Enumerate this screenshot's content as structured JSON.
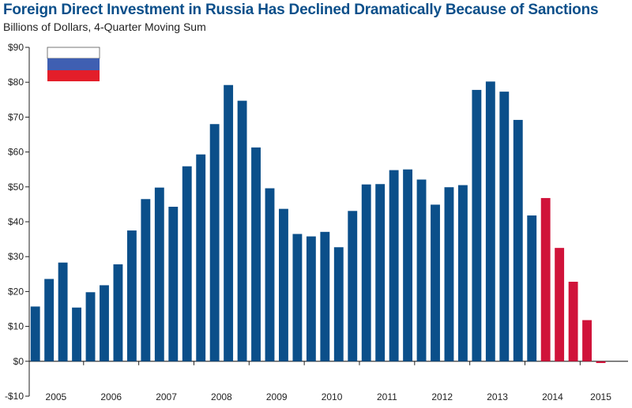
{
  "title": "Foreign Direct Investment in Russia Has Declined Dramatically Because of Sanctions",
  "subtitle": "Billions of Dollars, 4-Quarter Moving Sum",
  "colors": {
    "pre_sanction": "#0b4f8a",
    "post_sanction": "#d0133a",
    "flag_white": "#ffffff",
    "flag_blue": "#3f5fb2",
    "flag_red": "#e31e2a",
    "axis": "#222222",
    "title": "#0b4f8a"
  },
  "flag": {
    "icon": "russia-flag-icon",
    "stripes": [
      "white",
      "blue",
      "red"
    ]
  },
  "chart_data": {
    "type": "bar",
    "title": "Foreign Direct Investment in Russia Has Declined Dramatically Because of Sanctions",
    "ylabel": "Billions of Dollars, 4-Quarter Moving Sum",
    "xlabel": "",
    "ylim": [
      -10,
      90
    ],
    "yticks": [
      -10,
      0,
      10,
      20,
      30,
      40,
      50,
      60,
      70,
      80,
      90
    ],
    "ytick_labels": [
      "-$10",
      "$0",
      "$10",
      "$20",
      "$30",
      "$40",
      "$50",
      "$60",
      "$70",
      "$80",
      "$90"
    ],
    "years": [
      "2005",
      "2006",
      "2007",
      "2008",
      "2009",
      "2010",
      "2011",
      "2012",
      "2013",
      "2014",
      "2015"
    ],
    "quarters_per_year": 4,
    "values": [
      15.7,
      23.6,
      28.3,
      15.4,
      19.8,
      21.8,
      27.8,
      37.5,
      46.5,
      49.8,
      44.3,
      55.9,
      59.3,
      68.0,
      79.2,
      74.7,
      61.3,
      49.6,
      43.7,
      36.5,
      35.8,
      37.1,
      32.7,
      43.1,
      50.7,
      50.8,
      54.8,
      55.0,
      52.1,
      44.9,
      49.9,
      50.5,
      77.8,
      80.2,
      77.3,
      69.2,
      41.8,
      46.8,
      32.5,
      22.8,
      11.8,
      -0.5,
      0.0
    ],
    "series_color_index": [
      "pre",
      "pre",
      "pre",
      "pre",
      "pre",
      "pre",
      "pre",
      "pre",
      "pre",
      "pre",
      "pre",
      "pre",
      "pre",
      "pre",
      "pre",
      "pre",
      "pre",
      "pre",
      "pre",
      "pre",
      "pre",
      "pre",
      "pre",
      "pre",
      "pre",
      "pre",
      "pre",
      "pre",
      "pre",
      "pre",
      "pre",
      "pre",
      "pre",
      "pre",
      "pre",
      "pre",
      "pre",
      "post",
      "post",
      "post",
      "post",
      "post",
      "post"
    ],
    "legend": "none",
    "grid": false
  }
}
